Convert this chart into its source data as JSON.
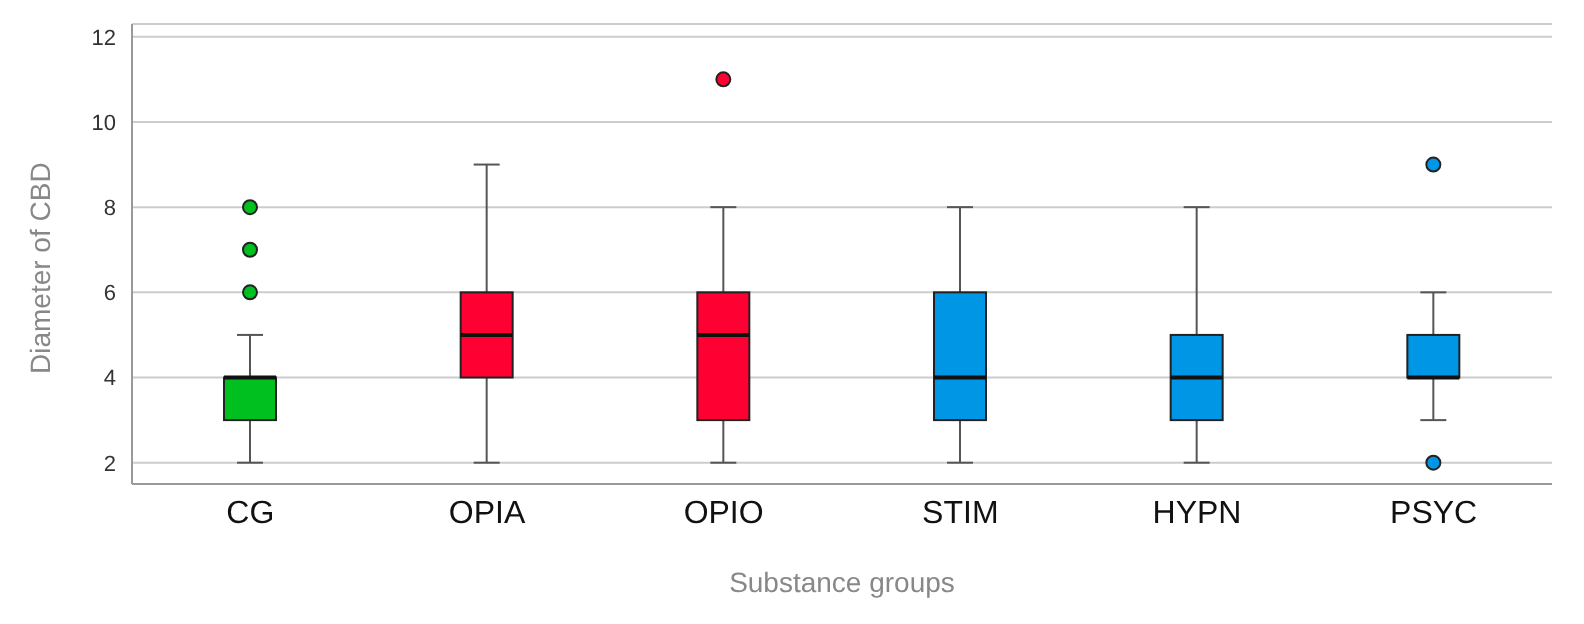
{
  "chart_data": {
    "type": "box",
    "xlabel": "Substance groups",
    "ylabel": "Diameter of CBD",
    "categories": [
      "CG",
      "OPIA",
      "OPIO",
      "STIM",
      "HYPN",
      "PSYC"
    ],
    "colors": [
      "#00c020",
      "#ff0033",
      "#ff0033",
      "#0096e6",
      "#0096e6",
      "#0096e6"
    ],
    "boxes": [
      {
        "low": 2,
        "q1": 3,
        "median": 4,
        "q3": 4,
        "high": 5,
        "outliers": [
          6,
          7,
          8
        ]
      },
      {
        "low": 2,
        "q1": 4,
        "median": 5,
        "q3": 6,
        "high": 9
      },
      {
        "low": 2,
        "q1": 3,
        "median": 5,
        "q3": 6,
        "high": 8,
        "outliers": [
          11
        ]
      },
      {
        "low": 2,
        "q1": 3,
        "median": 4,
        "q3": 6,
        "high": 8
      },
      {
        "low": 2,
        "q1": 3,
        "median": 4,
        "q3": 5,
        "high": 8
      },
      {
        "low": 3,
        "q1": 4,
        "median": 4,
        "q3": 5,
        "high": 6,
        "outliers": [
          2,
          9
        ]
      }
    ],
    "ylim": [
      1.5,
      12.3
    ],
    "yticks": [
      2,
      4,
      6,
      8,
      10,
      12
    ],
    "grid": "y"
  }
}
